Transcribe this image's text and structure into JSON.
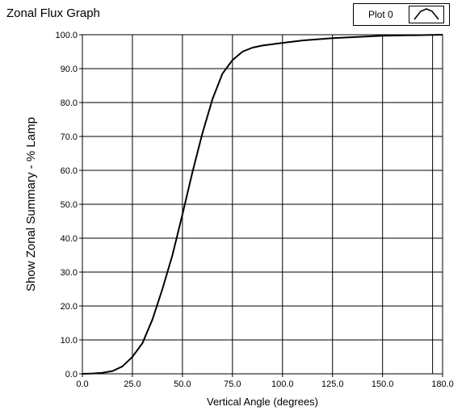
{
  "panel_title": "Zonal Flux Graph",
  "legend": {
    "label": "Plot 0",
    "icon": "line-peak-icon"
  },
  "chart_data": {
    "type": "line",
    "title": "Zonal Flux Graph",
    "xlabel": "Vertical Angle (degrees)",
    "ylabel": "Show Zonal Summary - % Lamp",
    "xlim": [
      0,
      180
    ],
    "ylim": [
      0,
      100
    ],
    "x_ticks": [
      0,
      25,
      50,
      75,
      100,
      125,
      150,
      180
    ],
    "x_tick_labels": [
      "0.0",
      "25.0",
      "50.0",
      "75.0",
      "100.0",
      "125.0",
      "150.0",
      "180.0"
    ],
    "y_ticks": [
      0,
      10,
      20,
      30,
      40,
      50,
      60,
      70,
      80,
      90,
      100
    ],
    "y_tick_labels": [
      "0.0",
      "10.0",
      "20.0",
      "30.0",
      "40.0",
      "50.0",
      "60.0",
      "70.0",
      "80.0",
      "90.0",
      "100.0"
    ],
    "grid": true,
    "legend_position": "top-right",
    "series": [
      {
        "name": "Plot 0",
        "color": "#000000",
        "x": [
          0,
          5,
          10,
          15,
          20,
          25,
          30,
          35,
          40,
          45,
          50,
          55,
          60,
          65,
          70,
          75,
          80,
          85,
          90,
          100,
          110,
          125,
          150,
          180
        ],
        "y": [
          0.0,
          0.1,
          0.3,
          0.8,
          2.2,
          5.0,
          9.0,
          16.0,
          25.0,
          35.0,
          47.0,
          59.5,
          71.0,
          81.0,
          88.5,
          92.5,
          95.0,
          96.2,
          96.8,
          97.6,
          98.3,
          99.0,
          99.7,
          100.0
        ]
      }
    ]
  }
}
